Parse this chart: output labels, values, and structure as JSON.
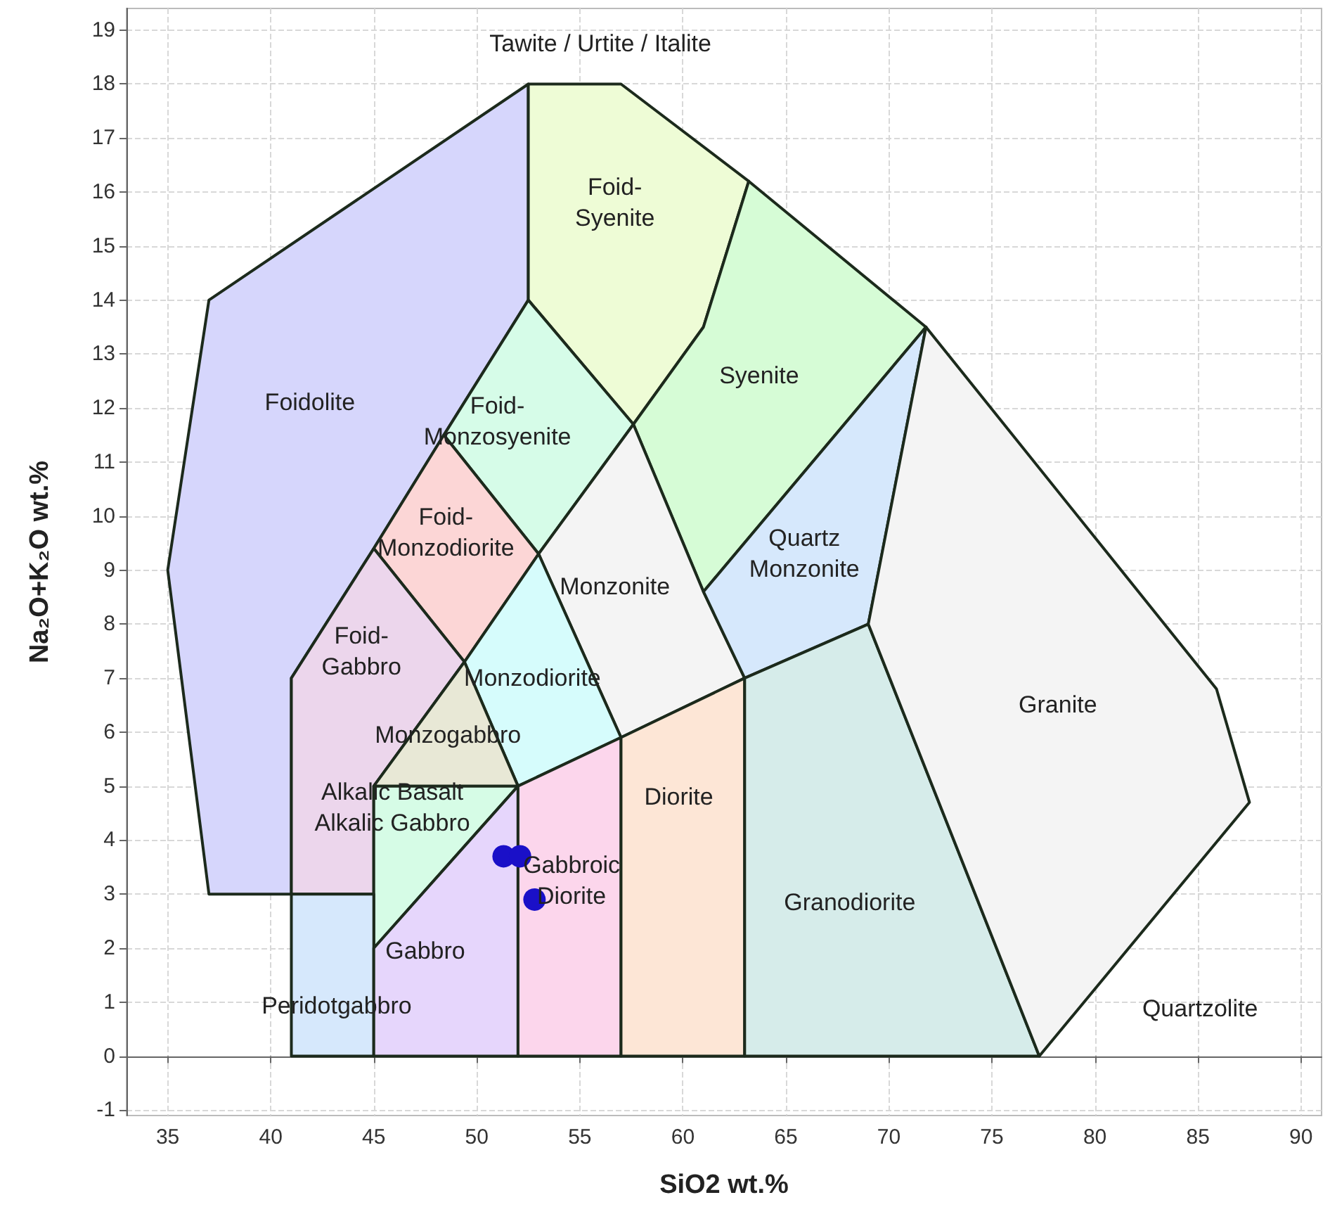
{
  "chart_data": {
    "type": "scatter",
    "xlabel": "SiO2 wt.%",
    "ylabel": "Na₂O+K₂O wt.%",
    "xlim": [
      33,
      91
    ],
    "ylim": [
      -1.1,
      19.4
    ],
    "xticks": [
      35,
      40,
      45,
      50,
      55,
      60,
      65,
      70,
      75,
      80,
      85,
      90
    ],
    "yticks": [
      -1,
      0,
      1,
      2,
      3,
      4,
      5,
      6,
      7,
      8,
      9,
      10,
      11,
      12,
      13,
      14,
      15,
      16,
      17,
      18,
      19
    ],
    "grid": true,
    "series": [
      {
        "type": "area",
        "color": "#d6d6fc",
        "x": [
          52.5,
          52.5,
          48.4,
          45,
          41,
          41,
          37,
          35,
          37,
          52.5
        ],
        "values": [
          18,
          14,
          11.5,
          9.4,
          7,
          3,
          3,
          9,
          14,
          18
        ]
      },
      {
        "type": "area",
        "color": "#eefcd6",
        "x": [
          52.5,
          57,
          63.2,
          61,
          57.6,
          52.5,
          52.5
        ],
        "values": [
          18,
          18,
          16.2,
          13.5,
          11.7,
          14,
          18
        ]
      },
      {
        "type": "area",
        "color": "#d6fcd6",
        "x": [
          57.6,
          61,
          63.2,
          71.8,
          61,
          57.6
        ],
        "values": [
          11.7,
          13.5,
          16.2,
          13.5,
          8.6,
          11.7
        ]
      },
      {
        "type": "area",
        "color": "#d6fce8",
        "x": [
          48.4,
          52.5,
          57.6,
          53,
          48.4
        ],
        "values": [
          11.5,
          14,
          11.7,
          9.3,
          11.5
        ]
      },
      {
        "type": "area",
        "color": "#fcd6d6",
        "x": [
          45,
          48.4,
          53,
          49.4,
          45
        ],
        "values": [
          9.4,
          11.5,
          9.3,
          7.3,
          9.4
        ]
      },
      {
        "type": "area",
        "color": "#ecd6ec",
        "x": [
          41,
          41,
          45,
          49.4,
          45,
          45,
          41
        ],
        "values": [
          3,
          7,
          9.4,
          7.3,
          5,
          3,
          3
        ]
      },
      {
        "type": "area",
        "color": "#f4f4f4",
        "x": [
          57,
          53,
          57.6,
          61,
          63,
          57
        ],
        "values": [
          5.9,
          9.3,
          11.7,
          8.6,
          7,
          5.9
        ]
      },
      {
        "type": "area",
        "color": "#d6e8fc",
        "x": [
          63,
          61,
          71.8,
          69,
          63
        ],
        "values": [
          7,
          8.6,
          13.5,
          8,
          7
        ]
      },
      {
        "type": "area",
        "color": "#d6fcfc",
        "x": [
          52,
          49.4,
          53,
          57,
          52
        ],
        "values": [
          5,
          7.3,
          9.3,
          5.9,
          5
        ]
      },
      {
        "type": "area",
        "color": "#e8e8d6",
        "x": [
          45,
          49.4,
          52,
          45
        ],
        "values": [
          5,
          7.3,
          5,
          5
        ]
      },
      {
        "type": "area",
        "color": "#d6fce6",
        "x": [
          45,
          45,
          52,
          45
        ],
        "values": [
          2,
          5,
          5,
          2
        ]
      },
      {
        "type": "area",
        "color": "#d6e8fc",
        "x": [
          41,
          41,
          45,
          45,
          41
        ],
        "values": [
          0,
          3,
          3,
          0,
          0
        ]
      },
      {
        "type": "area",
        "color": "#e6d6fc",
        "x": [
          45,
          45,
          52,
          52,
          45
        ],
        "values": [
          0,
          2,
          5,
          0,
          0
        ]
      },
      {
        "type": "area",
        "color": "#fcd6ec",
        "x": [
          52,
          52,
          57,
          57,
          52
        ],
        "values": [
          0,
          5,
          5.9,
          0,
          0
        ]
      },
      {
        "type": "area",
        "color": "#fde6d6",
        "x": [
          57,
          57,
          63,
          63,
          57
        ],
        "values": [
          0,
          5.9,
          7,
          0,
          0
        ]
      },
      {
        "type": "area",
        "color": "#d6ecea",
        "x": [
          63,
          63,
          69,
          77.3,
          63
        ],
        "values": [
          0,
          7,
          8,
          0,
          0
        ]
      },
      {
        "type": "area",
        "color": "#f4f4f4",
        "x": [
          77.3,
          69,
          71.8,
          85.9,
          87.5,
          77.3
        ],
        "values": [
          0,
          8,
          13.5,
          6.8,
          4.7,
          0
        ]
      },
      {
        "color": "#1a10c8",
        "marker": "circle",
        "x": [
          51.3,
          52.1,
          52.8
        ],
        "values": [
          3.7,
          3.7,
          2.9
        ]
      }
    ],
    "annotations": [
      "Tawite / Urtite / Italite",
      "Foid-\nSyenite",
      "Foidolite",
      "Foid-\nMonzosyenite",
      "Syenite",
      "Foid-\nMonzodiorite",
      "Quartz\nMonzonite",
      "Monzonite",
      "Foid-\nGabbro",
      "Monzodiorite",
      "Granite",
      "Monzogabbro",
      "Diorite",
      "Alkalic Basalt\nAlkalic Gabbro",
      "Gabbroic\nDiorite",
      "Granodiorite",
      "Gabbro",
      "Peridotgabbro",
      "Quartzolite"
    ]
  }
}
